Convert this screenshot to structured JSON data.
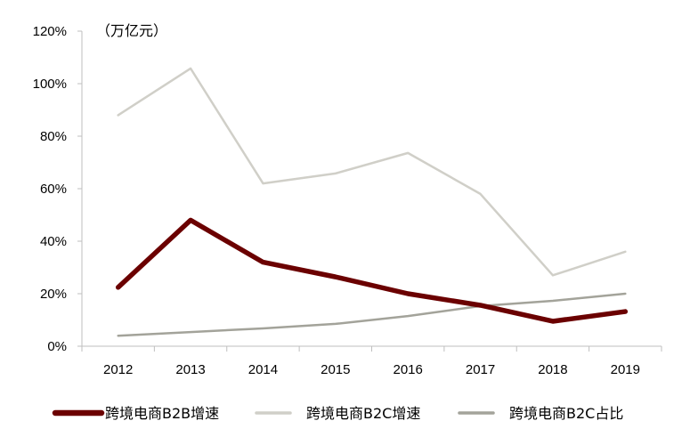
{
  "chart_data": {
    "type": "line",
    "unit_label": "（万亿元）",
    "x": [
      "2012",
      "2013",
      "2014",
      "2015",
      "2016",
      "2017",
      "2018",
      "2019"
    ],
    "ylim": [
      0,
      120
    ],
    "yticks": [
      "0%",
      "20%",
      "40%",
      "60%",
      "80%",
      "100%",
      "120%"
    ],
    "ytick_values": [
      0,
      20,
      40,
      60,
      80,
      100,
      120
    ],
    "grid": false,
    "legend_position": "bottom",
    "series": [
      {
        "name": "跨境电商B2B增速",
        "color": "#6b0000",
        "values": [
          22.4,
          48,
          32,
          26.4,
          20,
          15.6,
          9.5,
          13.2
        ]
      },
      {
        "name": "跨境电商B2C增速",
        "color": "#d0cfc8",
        "values": [
          88,
          105.8,
          62,
          65.8,
          73.6,
          58,
          27,
          36
        ]
      },
      {
        "name": "跨境电商B2C占比",
        "color": "#a3a39a",
        "values": [
          4,
          5.4,
          6.8,
          8.5,
          11.5,
          15.3,
          17.3,
          20
        ]
      }
    ]
  }
}
